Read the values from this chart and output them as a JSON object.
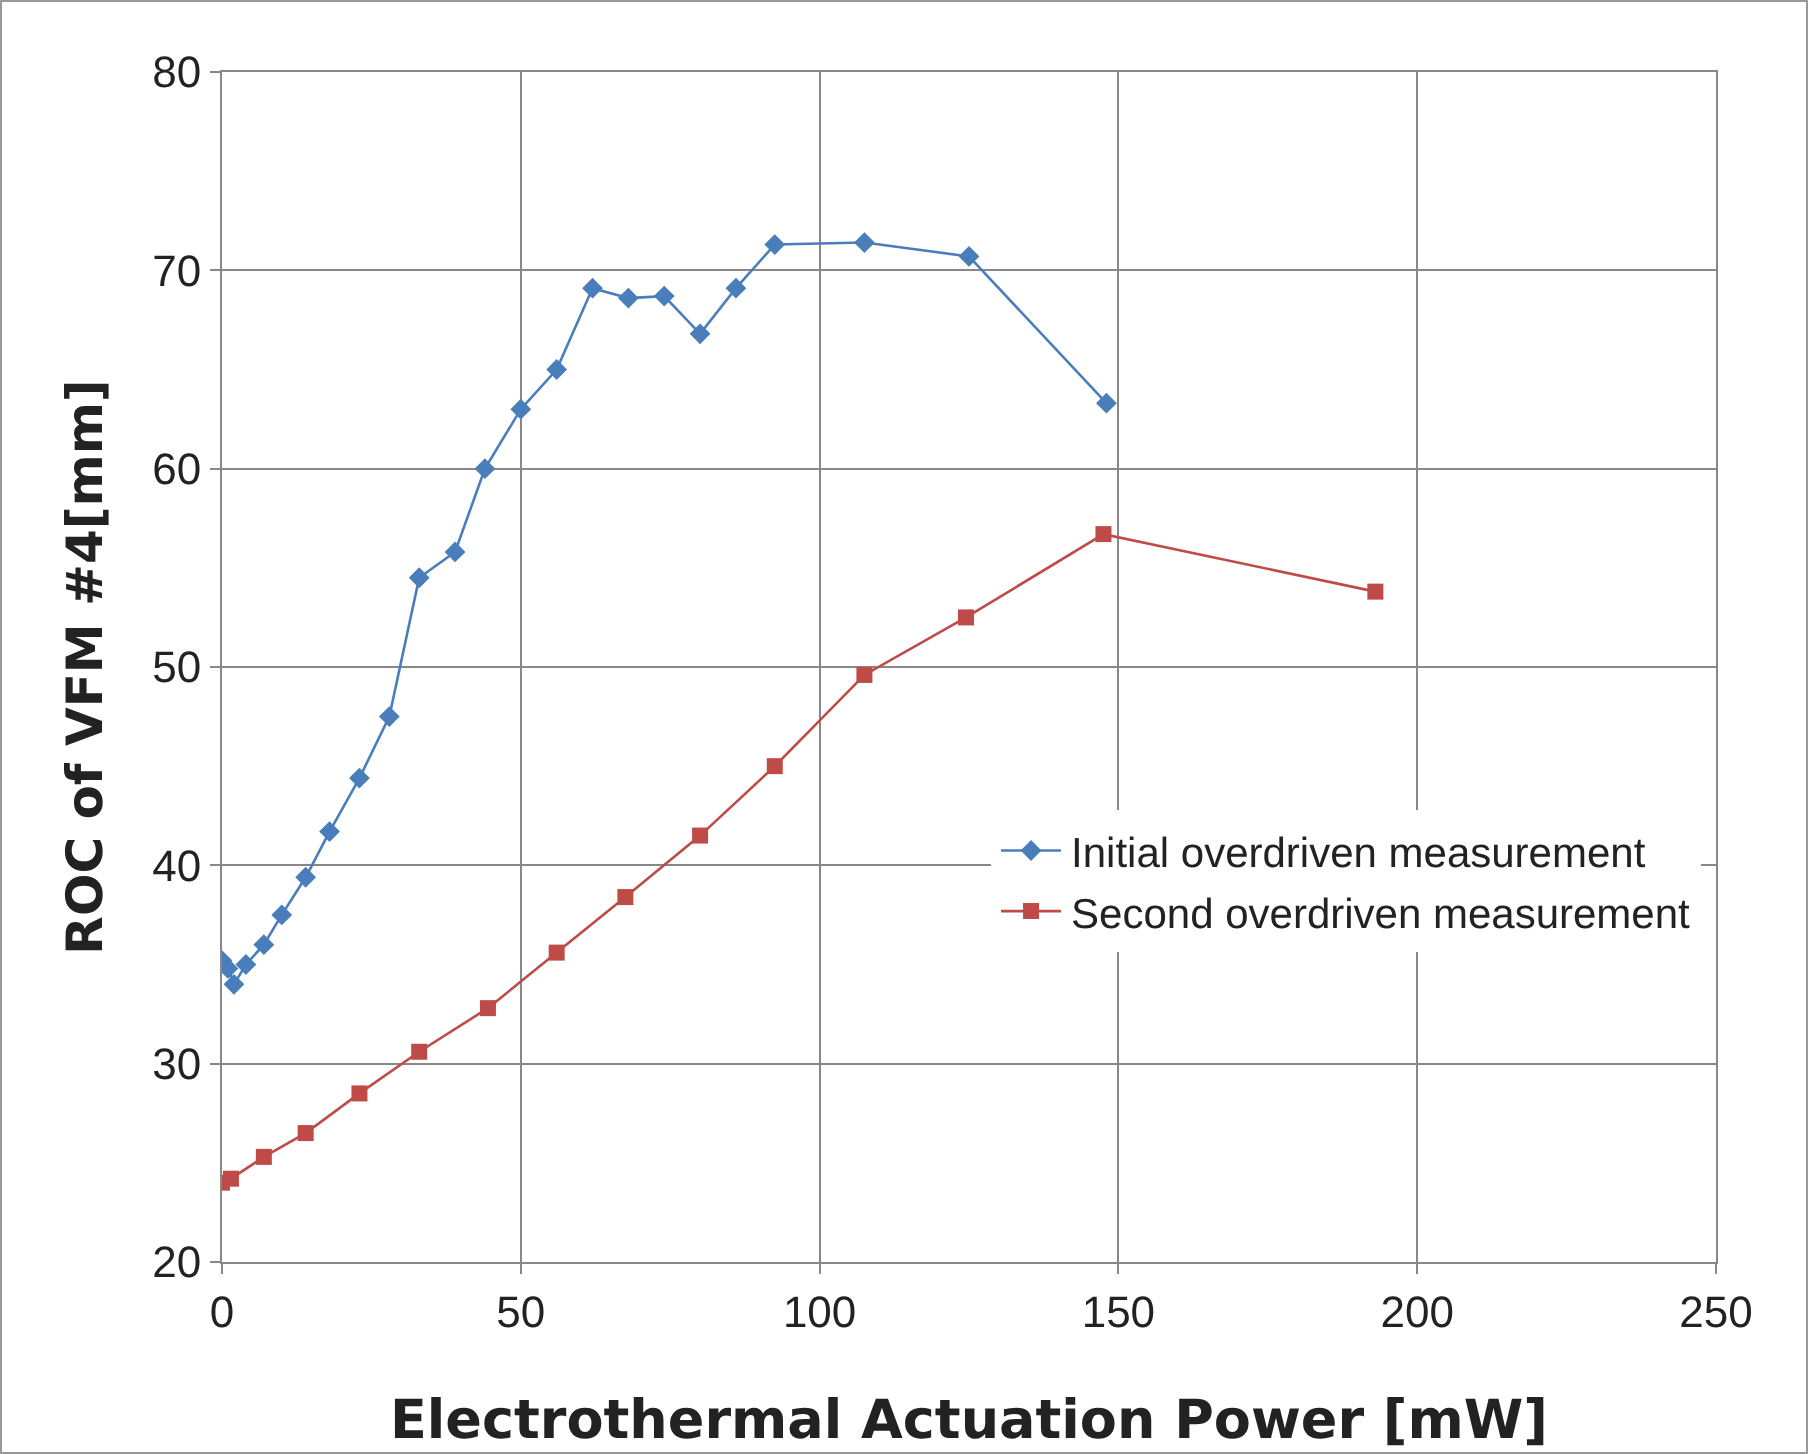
{
  "chart_data": {
    "type": "line",
    "xlabel": "Electrothermal Actuation Power [mW]",
    "ylabel": "ROC of VFM #4[mm]",
    "series": [
      {
        "name": "Initial overdriven measurement",
        "color": "#4a7ebb",
        "marker": "diamond",
        "x": [
          0,
          1,
          2,
          4,
          7,
          10,
          14,
          18,
          23,
          28,
          33,
          39,
          44,
          50,
          56,
          62,
          68,
          74,
          80,
          86,
          92.5,
          107.5,
          125,
          148
        ],
        "values": [
          35.2,
          34.8,
          34.0,
          35.0,
          36.0,
          37.5,
          39.4,
          41.7,
          44.4,
          47.5,
          54.5,
          55.8,
          60.0,
          63.0,
          65.0,
          69.1,
          68.6,
          68.7,
          66.8,
          69.1,
          71.3,
          71.4,
          70.7,
          63.3
        ]
      },
      {
        "name": "Second overdriven measurement",
        "color": "#be4b48",
        "marker": "square",
        "x": [
          0,
          1.5,
          7,
          14,
          23,
          33,
          44.5,
          56,
          67.5,
          80,
          92.5,
          107.5,
          124.5,
          147.5,
          193
        ],
        "values": [
          24.0,
          24.2,
          25.3,
          26.5,
          28.5,
          30.6,
          32.8,
          35.6,
          38.4,
          41.5,
          45.0,
          49.6,
          52.5,
          56.7,
          53.8
        ]
      }
    ],
    "xlim": [
      0,
      250
    ],
    "xticks": [
      0,
      50,
      100,
      150,
      200,
      250
    ],
    "ylim": [
      20,
      80
    ],
    "yticks": [
      20,
      30,
      40,
      50,
      60,
      70,
      80
    ],
    "grid": true,
    "legend": "right"
  }
}
